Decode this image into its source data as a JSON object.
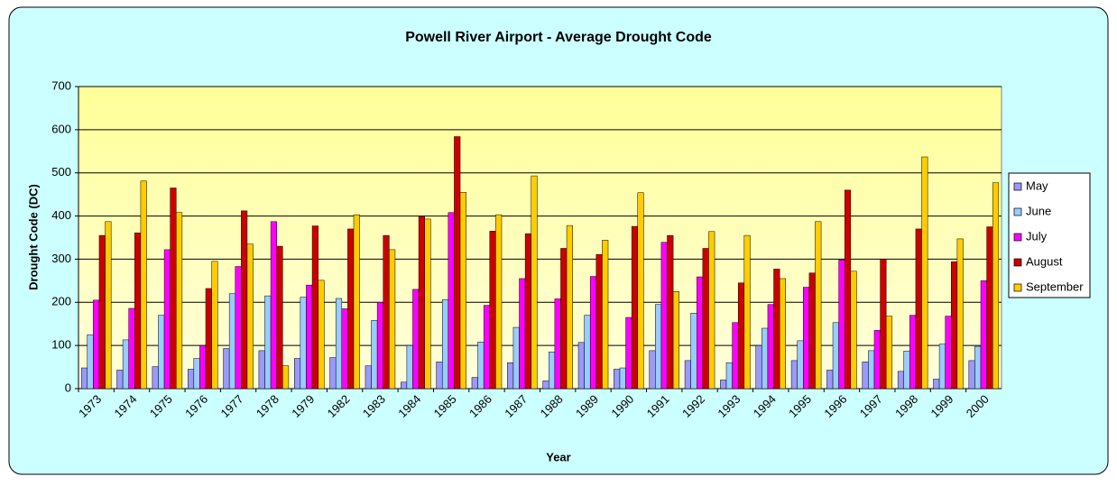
{
  "chart_data": {
    "type": "bar",
    "title": "Powell River Airport - Average Drought Code",
    "x_label": "Year",
    "y_label": "Drought Code (DC)",
    "categories": [
      "1973",
      "1974",
      "1975",
      "1976",
      "1977",
      "1978",
      "1979",
      "1982",
      "1983",
      "1984",
      "1985",
      "1986",
      "1987",
      "1988",
      "1989",
      "1990",
      "1991",
      "1992",
      "1993",
      "1994",
      "1995",
      "1996",
      "1997",
      "1998",
      "1999",
      "2000"
    ],
    "series": [
      {
        "name": "May",
        "color": "#9999ff",
        "values": [
          48,
          43,
          51,
          45,
          93,
          88,
          70,
          72,
          53,
          15,
          62,
          26,
          60,
          18,
          107,
          45,
          88,
          65,
          20,
          100,
          65,
          43,
          62,
          40,
          22,
          65
        ]
      },
      {
        "name": "June",
        "color": "#99ccff",
        "values": [
          125,
          113,
          170,
          70,
          220,
          215,
          212,
          209,
          158,
          100,
          206,
          108,
          142,
          85,
          170,
          48,
          195,
          175,
          60,
          140,
          111,
          153,
          88,
          87,
          103,
          98
        ]
      },
      {
        "name": "July",
        "color": "#ff00ff",
        "values": [
          205,
          186,
          322,
          100,
          283,
          387,
          240,
          185,
          200,
          230,
          408,
          193,
          255,
          208,
          260,
          165,
          339,
          259,
          153,
          195,
          235,
          298,
          135,
          170,
          168,
          250
        ]
      },
      {
        "name": "August",
        "color": "#cc0000",
        "values": [
          355,
          361,
          465,
          232,
          412,
          330,
          377,
          370,
          355,
          399,
          584,
          365,
          359,
          325,
          311,
          376,
          355,
          325,
          245,
          277,
          268,
          460,
          300,
          370,
          294,
          375
        ]
      },
      {
        "name": "September",
        "color": "#ffcc00",
        "values": [
          387,
          481,
          408,
          295,
          335,
          53,
          251,
          403,
          322,
          393,
          455,
          403,
          493,
          378,
          344,
          454,
          225,
          364,
          355,
          255,
          387,
          272,
          168,
          537,
          347,
          477
        ]
      }
    ],
    "ylim": [
      0,
      700
    ],
    "yticks": [
      0,
      100,
      200,
      300,
      400,
      500,
      600,
      700
    ],
    "grid": true,
    "legend": "right"
  }
}
